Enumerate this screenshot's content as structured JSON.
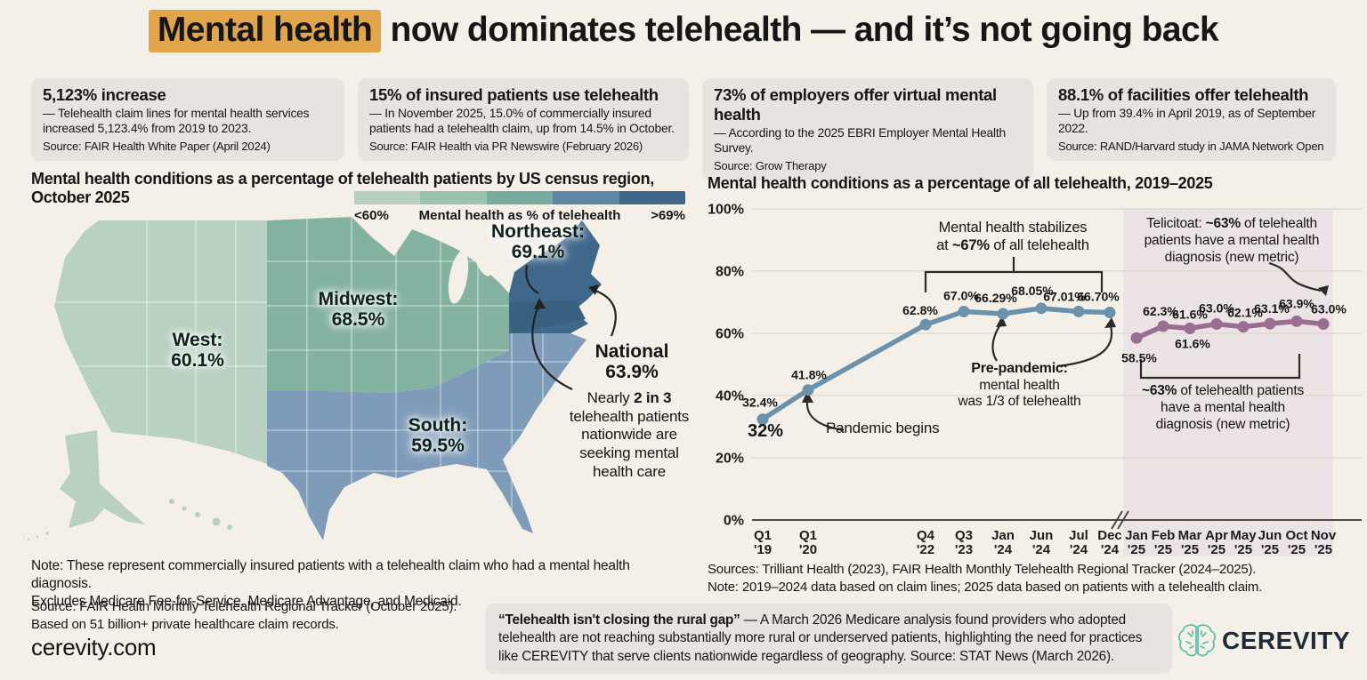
{
  "title": {
    "highlight": "Mental health",
    "rest": " now dominates telehealth — and it’s not going back"
  },
  "stat_cards": [
    {
      "heading": "5,123% increase",
      "body": "— Telehealth claim lines for mental health services increased 5,123.4% from 2019 to 2023.",
      "source": "Source: FAIR Health White Paper (April 2024)"
    },
    {
      "heading": "15% of insured patients use telehealth",
      "body": "— In November 2025, 15.0% of commercially insured patients had a telehealth claim, up from 14.5% in October.",
      "source": "Source: FAIR Health via PR Newswire (February 2026)"
    },
    {
      "heading": "73% of employers offer virtual mental health",
      "body": "— According to the 2025 EBRI Employer Mental Health Survey.",
      "source": "Source: Grow Therapy"
    },
    {
      "heading": "88.1% of facilities offer telehealth",
      "body": "— Up from 39.4% in April 2019, as of September 2022.",
      "source": "Source: RAND/Harvard study in JAMA Network Open"
    }
  ],
  "map_section": {
    "title": "Mental health conditions as a percentage of telehealth patients by US census region, October 2025",
    "legend": {
      "min_label": "<60%",
      "center_label": "Mental health as % of telehealth",
      "max_label": ">69%",
      "colors": [
        "#b6cfc0",
        "#9ac2af",
        "#78aba0",
        "#5d87a3",
        "#3f678a"
      ]
    },
    "region_colors": {
      "west": "#b8d1c1",
      "midwest": "#84b2a1",
      "south": "#7e9cba",
      "northeast": "#40688a",
      "northeast_dark": "#38607f"
    },
    "regions": [
      {
        "name": "West:",
        "value": "60.1%"
      },
      {
        "name": "Midwest:",
        "value": "68.5%"
      },
      {
        "name": "Northeast:",
        "value": "69.1%"
      },
      {
        "name": "South:",
        "value": "59.5%"
      }
    ],
    "national": {
      "label": "National",
      "value": "63.9%"
    },
    "callout": {
      "pre": "Nearly ",
      "bold": "2 in 3",
      "post": " telehealth patients nationwide are seeking mental health care"
    },
    "note_line1": "Note: These represent commercially insured patients with a telehealth claim who had a mental health diagnosis.",
    "note_line2": "Excludes Medicare Fee-for-Service, Medicare Advantage, and Medicaid.",
    "source_line1": "Source: FAIR Health Monthly Telehealth Regional Tracker (October 2025).",
    "source_line2": "Based on 51 billion+ private healthcare claim records.",
    "website": "cerevity.com"
  },
  "chart_section": {
    "title": "Mental health conditions as a percentage of all telehealth, 2019–2025",
    "sources": "Sources: Trilliant Health (2023), FAIR Health Monthly Telehealth Regional Tracker (2024–2025).",
    "note": "Note: 2019–2024 data based on claim lines; 2025 data based on patients with a telehealth claim."
  },
  "chart_data": {
    "type": "line",
    "title": "Mental health conditions as a percentage of all telehealth, 2019–2025",
    "ylim": [
      0,
      100
    ],
    "grid": true,
    "yticks": [
      {
        "value": 0,
        "label": "0%"
      },
      {
        "value": 20,
        "label": "20%"
      },
      {
        "value": 40,
        "label": "40%"
      },
      {
        "value": 60,
        "label": "60%"
      },
      {
        "value": 80,
        "label": "80%"
      },
      {
        "value": 100,
        "label": "100%"
      }
    ],
    "x_labels": [
      [
        "Q1",
        "'19"
      ],
      [
        "Q1",
        "'20"
      ],
      [
        "Q4",
        "'22"
      ],
      [
        "Q3",
        "'23"
      ],
      [
        "Jan",
        "'24"
      ],
      [
        "Jun",
        "'24"
      ],
      [
        "Jul",
        "'24"
      ],
      [
        "Dec",
        "'24"
      ],
      [
        "Jan",
        "'25"
      ],
      [
        "Feb",
        "'25"
      ],
      [
        "Mar",
        "'25"
      ],
      [
        "Apr",
        "'25"
      ],
      [
        "May",
        "'25"
      ],
      [
        "Jun",
        "'25"
      ],
      [
        "Oct",
        "'25"
      ],
      [
        "Nov",
        "'25"
      ]
    ],
    "axis_break_between": [
      "Dec '24",
      "Jan '25"
    ],
    "highlight_region": {
      "from": "Jan '25",
      "to": "Nov '25",
      "color": "#e2d6e0"
    },
    "series": [
      {
        "name": "2019–2024 mental health % of telehealth (claim lines)",
        "color": "#6b92ac",
        "point_color": "#6b92ac",
        "x_start": 0,
        "values": [
          32.4,
          41.8,
          62.8,
          67.0,
          66.29,
          68.05,
          67.01,
          66.7
        ],
        "labels": [
          "32.4%",
          "41.8%",
          "62.8%",
          "67.0%",
          "66.29%",
          "68.05%",
          "67.01%",
          "66.70%"
        ]
      },
      {
        "name": "2025 telehealth patients with a mental health diagnosis (new metric)",
        "color": "#9a6e92",
        "point_color": "#9a6e92",
        "x_start": 8,
        "values": [
          58.5,
          62.3,
          61.6,
          63.0,
          62.1,
          63.1,
          63.9,
          63.0
        ],
        "labels": [
          "58.5%",
          "62.3%",
          "61.6%",
          "63.0%",
          "62.1%",
          "63.1%",
          "63.9%",
          "63.0%"
        ],
        "extra_label": {
          "index": 2,
          "text": "61.6%"
        }
      }
    ],
    "annotations": {
      "stabilizes_line1": "Mental health stabilizes",
      "stabilizes_line2_pre": "at ",
      "stabilizes_line2_bold": "~67%",
      "stabilizes_line2_post": " of all telehealth",
      "newtop_pre": "Telicitoat: ",
      "newtop_bold": "~63%",
      "newtop_post": " of telehealth patients have a mental health diagnosis (new metric)",
      "pandemic": "Pandemic begins",
      "prepandemic_bold": "Pre-pandemic:",
      "prepandemic_line2": "mental health",
      "prepandemic_line3": "was 1/3 of telehealth",
      "newbottom_bold": "~63%",
      "newbottom_post": " of telehealth patients have a mental health diagnosis (new metric)",
      "first_point_bold": "32%"
    }
  },
  "quote_box": {
    "bold": "“Telehealth isn't closing the rural gap”",
    "rest": " — A March 2026 Medicare analysis found providers who adopted telehealth are not reaching substantially more rural or underserved patients, highlighting the need for practices like CEREVITY that serve clients nationwide regardless of geography. Source: STAT News (March 2026)."
  },
  "logo": {
    "brand": "CEREVITY"
  }
}
